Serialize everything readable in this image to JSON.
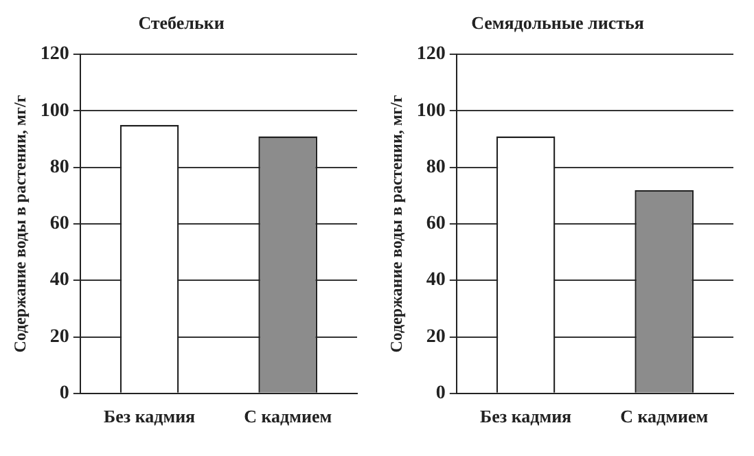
{
  "chart_data": [
    {
      "type": "bar",
      "title": "Стебельки",
      "ylabel": "Содержание воды в растении, мг/г",
      "categories": [
        "Без кадмия",
        "С кадмием"
      ],
      "values": [
        95,
        91
      ],
      "colors": [
        "#ffffff",
        "#8c8c8c"
      ],
      "ylim": [
        0,
        120
      ],
      "yticks": [
        0,
        20,
        40,
        60,
        80,
        100,
        120
      ],
      "grid": "y"
    },
    {
      "type": "bar",
      "title": "Семядольные листья",
      "ylabel": "Содержание воды в растении, мг/г",
      "categories": [
        "Без кадмия",
        "С кадмием"
      ],
      "values": [
        91,
        72
      ],
      "colors": [
        "#ffffff",
        "#8c8c8c"
      ],
      "ylim": [
        0,
        120
      ],
      "yticks": [
        0,
        20,
        40,
        60,
        80,
        100,
        120
      ],
      "grid": "y"
    }
  ]
}
